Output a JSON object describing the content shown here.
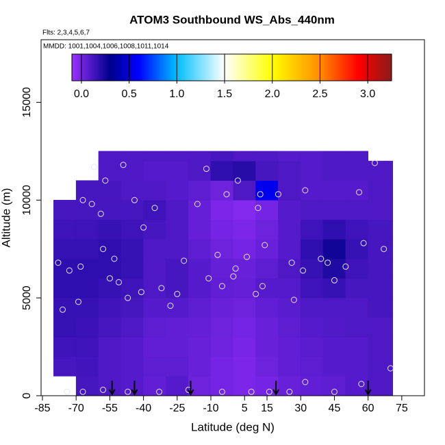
{
  "chart_data": {
    "type": "heatmap",
    "title": "ATOM3 Southbound WS_Abs_440nm",
    "flights_label": "Flts: 2,3,4,5,6,7",
    "dates_label": "MMDD: 1001,1004,1006,1008,1011,1014",
    "xlabel": "Latitude (deg N)",
    "ylabel": "Altitude (m)",
    "xlim": [
      -85.6,
      85.1
    ],
    "ylim": [
      0,
      18200
    ],
    "xticks": [
      -85,
      -70,
      -55,
      -40,
      -25,
      -10,
      5,
      15,
      30,
      45,
      60,
      75
    ],
    "yticks": [
      0,
      5000,
      10000,
      15000
    ],
    "lat_edges": [
      -80,
      -70,
      -60,
      -50,
      -40,
      -30,
      -20,
      -10,
      0,
      10,
      20,
      30,
      40,
      50,
      60,
      71
    ],
    "alt_edges": [
      0,
      1000,
      2000,
      3000,
      4000,
      5000,
      6000,
      7000,
      8000,
      9000,
      10000,
      11000,
      12000,
      12500
    ],
    "values": [
      [
        null,
        0.12,
        0.1,
        0.08,
        0.05,
        0.08,
        0.02,
        0.0,
        -0.02,
        0.0,
        0.03,
        0.05,
        0.06,
        0.08,
        0.1
      ],
      [
        0.12,
        0.13,
        0.1,
        0.08,
        0.06,
        0.06,
        0.03,
        0.0,
        -0.02,
        0.02,
        0.05,
        0.06,
        0.08,
        0.08,
        0.1
      ],
      [
        0.14,
        0.14,
        0.1,
        0.08,
        0.05,
        0.05,
        0.03,
        0.01,
        -0.01,
        0.03,
        0.05,
        0.07,
        0.08,
        0.08,
        0.1
      ],
      [
        0.16,
        0.15,
        0.12,
        0.1,
        0.06,
        0.05,
        0.04,
        0.02,
        0.0,
        0.03,
        0.06,
        0.08,
        0.09,
        0.1,
        0.1
      ],
      [
        0.16,
        0.16,
        0.14,
        0.12,
        0.08,
        0.08,
        0.06,
        0.03,
        0.02,
        0.05,
        0.07,
        0.1,
        0.1,
        0.1,
        0.12
      ],
      [
        0.18,
        0.18,
        0.16,
        0.14,
        0.1,
        0.12,
        0.08,
        0.05,
        0.04,
        0.08,
        0.08,
        0.14,
        0.16,
        0.12,
        0.12
      ],
      [
        0.18,
        0.18,
        0.18,
        0.16,
        0.1,
        0.12,
        0.08,
        0.04,
        0.03,
        0.06,
        0.1,
        0.16,
        0.22,
        0.14,
        0.12
      ],
      [
        0.16,
        0.16,
        0.18,
        0.16,
        0.1,
        0.1,
        0.06,
        0.02,
        0.0,
        0.03,
        0.08,
        0.18,
        0.26,
        0.16,
        0.12
      ],
      [
        0.14,
        0.14,
        0.16,
        0.14,
        0.12,
        0.1,
        0.04,
        0.0,
        -0.02,
        0.02,
        0.08,
        0.14,
        0.18,
        0.14,
        0.12
      ],
      [
        0.12,
        0.12,
        0.12,
        0.12,
        0.14,
        0.1,
        0.04,
        -0.02,
        -0.04,
        0.0,
        0.08,
        0.1,
        0.1,
        0.1,
        0.1
      ],
      [
        null,
        0.12,
        0.12,
        0.1,
        0.1,
        0.08,
        0.06,
        0.02,
        0.1,
        0.55,
        0.1,
        0.08,
        0.08,
        0.08,
        0.1
      ],
      [
        null,
        null,
        0.1,
        0.1,
        0.08,
        0.08,
        0.1,
        0.18,
        0.2,
        0.12,
        0.1,
        0.08,
        0.1,
        0.1,
        0.1
      ],
      [
        null,
        null,
        0.1,
        0.1,
        0.1,
        0.1,
        0.1,
        0.12,
        0.1,
        0.1,
        0.08,
        0.08,
        0.1,
        0.1,
        null
      ]
    ],
    "colorbar": {
      "lim": [
        -0.1,
        3.25
      ],
      "ticks": [
        {
          "value": 0,
          "label": "0.0"
        },
        0.5,
        {
          "value": 1,
          "label": "1.0"
        },
        1.5,
        {
          "value": 2,
          "label": "2.0"
        },
        2.5,
        {
          "value": 3,
          "label": "3.0"
        }
      ],
      "stops": [
        {
          "value": -0.1,
          "color": "#9b30ff"
        },
        {
          "value": 0.3,
          "color": "#00008b"
        },
        {
          "value": 0.6,
          "color": "#0000ff"
        },
        {
          "value": 1.0,
          "color": "#00bfff"
        },
        {
          "value": 1.5,
          "color": "#ffffff"
        },
        {
          "value": 2.0,
          "color": "#ffff00"
        },
        {
          "value": 2.5,
          "color": "#ff8c00"
        },
        {
          "value": 2.9,
          "color": "#ff0000"
        },
        {
          "value": 3.25,
          "color": "#8b1a1a"
        }
      ]
    },
    "points": {
      "color": "#e6e6ff",
      "x": [
        -78,
        -76,
        -73,
        -69,
        -68,
        -67,
        -62,
        -63,
        -59,
        -57,
        -58,
        -53,
        -55,
        -49,
        -51,
        -47,
        -44,
        -41,
        -40,
        -35,
        -32,
        -28,
        -25,
        -22,
        -16,
        -12,
        -11,
        -7,
        -5,
        -3,
        0,
        1,
        2,
        6,
        10,
        12,
        14,
        11,
        13,
        20,
        26,
        27,
        31,
        32,
        39,
        42,
        45,
        50,
        56,
        58,
        63,
        67,
        70,
        -74,
        -67,
        -58,
        -47,
        -33,
        -20,
        -5,
        8,
        16,
        25,
        32,
        45,
        57
      ],
      "y": [
        6800,
        4400,
        6400,
        4800,
        6600,
        10000,
        11700,
        9800,
        9300,
        11000,
        7500,
        7000,
        6000,
        11800,
        5800,
        5000,
        10000,
        5300,
        8600,
        9600,
        5500,
        4600,
        5200,
        6900,
        9800,
        11600,
        6000,
        7200,
        5600,
        10300,
        6100,
        6500,
        11000,
        7100,
        5200,
        10300,
        7700,
        9600,
        5600,
        10300,
        6800,
        4900,
        6400,
        10500,
        7000,
        6800,
        5900,
        6600,
        10400,
        7800,
        11900,
        7500,
        1400,
        200,
        200,
        300,
        200,
        200,
        300,
        200,
        200,
        200,
        200,
        700,
        200,
        600
      ]
    },
    "arrows": [
      -54,
      -44,
      -19,
      19,
      60
    ]
  }
}
